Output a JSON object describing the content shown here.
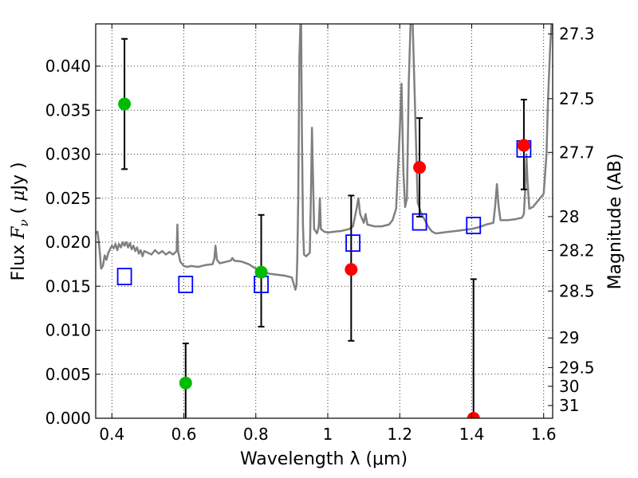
{
  "chart_data": {
    "type": "scatter",
    "xlabel": "Wavelength  λ (μm)",
    "ylabel": "Flux  F_ν  ( μJy )",
    "ylabel_right": "Magnitude (AB)",
    "xlim": [
      0.355,
      1.625
    ],
    "ylim": [
      0.0,
      0.0448
    ],
    "grid": true,
    "x_ticks": [
      {
        "value": 0.4,
        "label": "0.4"
      },
      {
        "value": 0.6,
        "label": "0.6"
      },
      {
        "value": 0.8,
        "label": "0.8"
      },
      {
        "value": 1.0,
        "label": "1"
      },
      {
        "value": 1.2,
        "label": "1.2"
      },
      {
        "value": 1.4,
        "label": "1.4"
      },
      {
        "value": 1.6,
        "label": "1.6"
      }
    ],
    "y_ticks": [
      {
        "value": 0.0,
        "label": "0.000"
      },
      {
        "value": 0.005,
        "label": "0.005"
      },
      {
        "value": 0.01,
        "label": "0.010"
      },
      {
        "value": 0.015,
        "label": "0.015"
      },
      {
        "value": 0.02,
        "label": "0.020"
      },
      {
        "value": 0.025,
        "label": "0.025"
      },
      {
        "value": 0.03,
        "label": "0.030"
      },
      {
        "value": 0.035,
        "label": "0.035"
      },
      {
        "value": 0.04,
        "label": "0.040"
      }
    ],
    "mag_ticks": [
      {
        "value": 27.3,
        "label": "27.3"
      },
      {
        "value": 27.5,
        "label": "27.5"
      },
      {
        "value": 27.7,
        "label": "27.7"
      },
      {
        "value": 28.0,
        "label": "28"
      },
      {
        "value": 28.2,
        "label": "28.2"
      },
      {
        "value": 28.5,
        "label": "28.5"
      },
      {
        "value": 29.0,
        "label": "29"
      },
      {
        "value": 29.5,
        "label": "29.5"
      },
      {
        "value": 30.0,
        "label": "30"
      },
      {
        "value": 31.0,
        "label": "31"
      }
    ],
    "model_spectrum": {
      "color": "#808080",
      "points": [
        [
          0.355,
          0.021
        ],
        [
          0.36,
          0.0212
        ],
        [
          0.365,
          0.0195
        ],
        [
          0.37,
          0.017
        ],
        [
          0.375,
          0.0173
        ],
        [
          0.38,
          0.0185
        ],
        [
          0.385,
          0.018
        ],
        [
          0.39,
          0.0188
        ],
        [
          0.395,
          0.0192
        ],
        [
          0.4,
          0.0196
        ],
        [
          0.405,
          0.0193
        ],
        [
          0.41,
          0.0198
        ],
        [
          0.415,
          0.0191
        ],
        [
          0.42,
          0.0198
        ],
        [
          0.425,
          0.0194
        ],
        [
          0.43,
          0.02
        ],
        [
          0.435,
          0.0196
        ],
        [
          0.44,
          0.02
        ],
        [
          0.445,
          0.0194
        ],
        [
          0.45,
          0.0199
        ],
        [
          0.455,
          0.0192
        ],
        [
          0.46,
          0.0196
        ],
        [
          0.465,
          0.019
        ],
        [
          0.47,
          0.0194
        ],
        [
          0.475,
          0.0187
        ],
        [
          0.48,
          0.0191
        ],
        [
          0.485,
          0.0184
        ],
        [
          0.49,
          0.019
        ],
        [
          0.5,
          0.0188
        ],
        [
          0.51,
          0.0186
        ],
        [
          0.52,
          0.0191
        ],
        [
          0.53,
          0.0187
        ],
        [
          0.54,
          0.019
        ],
        [
          0.55,
          0.0186
        ],
        [
          0.56,
          0.0189
        ],
        [
          0.57,
          0.0186
        ],
        [
          0.58,
          0.019
        ],
        [
          0.582,
          0.022
        ],
        [
          0.584,
          0.019
        ],
        [
          0.59,
          0.0178
        ],
        [
          0.6,
          0.0173
        ],
        [
          0.61,
          0.0172
        ],
        [
          0.62,
          0.0173
        ],
        [
          0.64,
          0.0172
        ],
        [
          0.66,
          0.0174
        ],
        [
          0.68,
          0.0175
        ],
        [
          0.685,
          0.0182
        ],
        [
          0.688,
          0.0196
        ],
        [
          0.692,
          0.018
        ],
        [
          0.7,
          0.0176
        ],
        [
          0.72,
          0.0178
        ],
        [
          0.73,
          0.0179
        ],
        [
          0.735,
          0.0182
        ],
        [
          0.74,
          0.0179
        ],
        [
          0.76,
          0.0178
        ],
        [
          0.78,
          0.0175
        ],
        [
          0.8,
          0.017
        ],
        [
          0.82,
          0.0166
        ],
        [
          0.84,
          0.0164
        ],
        [
          0.86,
          0.0163
        ],
        [
          0.88,
          0.0162
        ],
        [
          0.9,
          0.016
        ],
        [
          0.91,
          0.0146
        ],
        [
          0.913,
          0.0152
        ],
        [
          0.915,
          0.0178
        ],
        [
          0.918,
          0.025
        ],
        [
          0.921,
          0.041
        ],
        [
          0.924,
          0.0448
        ],
        [
          0.926,
          0.0448
        ],
        [
          0.928,
          0.033
        ],
        [
          0.931,
          0.0218
        ],
        [
          0.934,
          0.0186
        ],
        [
          0.94,
          0.0184
        ],
        [
          0.95,
          0.0188
        ],
        [
          0.953,
          0.025
        ],
        [
          0.956,
          0.033
        ],
        [
          0.958,
          0.029
        ],
        [
          0.962,
          0.0215
        ],
        [
          0.97,
          0.021
        ],
        [
          0.975,
          0.0218
        ],
        [
          0.978,
          0.025
        ],
        [
          0.981,
          0.0215
        ],
        [
          0.99,
          0.0212
        ],
        [
          1.0,
          0.0211
        ],
        [
          1.02,
          0.0212
        ],
        [
          1.04,
          0.0213
        ],
        [
          1.06,
          0.0215
        ],
        [
          1.07,
          0.0218
        ],
        [
          1.08,
          0.0238
        ],
        [
          1.085,
          0.025
        ],
        [
          1.09,
          0.0232
        ],
        [
          1.1,
          0.0222
        ],
        [
          1.105,
          0.0232
        ],
        [
          1.11,
          0.022
        ],
        [
          1.13,
          0.0218
        ],
        [
          1.15,
          0.0218
        ],
        [
          1.17,
          0.022
        ],
        [
          1.18,
          0.0225
        ],
        [
          1.19,
          0.0238
        ],
        [
          1.2,
          0.0325
        ],
        [
          1.205,
          0.038
        ],
        [
          1.21,
          0.028
        ],
        [
          1.215,
          0.024
        ],
        [
          1.22,
          0.025
        ],
        [
          1.225,
          0.038
        ],
        [
          1.23,
          0.0448
        ],
        [
          1.236,
          0.0448
        ],
        [
          1.242,
          0.036
        ],
        [
          1.25,
          0.0245
        ],
        [
          1.26,
          0.0232
        ],
        [
          1.27,
          0.0225
        ],
        [
          1.28,
          0.0217
        ],
        [
          1.29,
          0.0212
        ],
        [
          1.3,
          0.021
        ],
        [
          1.32,
          0.0211
        ],
        [
          1.34,
          0.0212
        ],
        [
          1.36,
          0.0213
        ],
        [
          1.38,
          0.0214
        ],
        [
          1.4,
          0.0215
        ],
        [
          1.42,
          0.0217
        ],
        [
          1.44,
          0.022
        ],
        [
          1.46,
          0.0222
        ],
        [
          1.465,
          0.024
        ],
        [
          1.47,
          0.0266
        ],
        [
          1.475,
          0.024
        ],
        [
          1.48,
          0.0225
        ],
        [
          1.5,
          0.0225
        ],
        [
          1.52,
          0.0226
        ],
        [
          1.54,
          0.0228
        ],
        [
          1.545,
          0.0232
        ],
        [
          1.548,
          0.0255
        ],
        [
          1.552,
          0.03
        ],
        [
          1.555,
          0.027
        ],
        [
          1.56,
          0.0238
        ],
        [
          1.57,
          0.024
        ],
        [
          1.58,
          0.0245
        ],
        [
          1.59,
          0.025
        ],
        [
          1.6,
          0.0255
        ],
        [
          1.608,
          0.03
        ],
        [
          1.612,
          0.036
        ],
        [
          1.618,
          0.042
        ],
        [
          1.622,
          0.0448
        ],
        [
          1.625,
          0.0448
        ]
      ]
    },
    "model_photometry": {
      "marker": "open-square",
      "color": "#0000ff",
      "points": [
        {
          "x": 0.435,
          "y": 0.0161
        },
        {
          "x": 0.605,
          "y": 0.0152
        },
        {
          "x": 0.815,
          "y": 0.0152
        },
        {
          "x": 1.07,
          "y": 0.0199
        },
        {
          "x": 1.255,
          "y": 0.0223
        },
        {
          "x": 1.405,
          "y": 0.0219
        },
        {
          "x": 1.545,
          "y": 0.0306
        }
      ]
    },
    "observed_optical": {
      "marker": "filled-circle",
      "color": "#00bb00",
      "points": [
        {
          "x": 0.435,
          "y": 0.0357,
          "err_low": 0.0283,
          "err_high": 0.0431
        },
        {
          "x": 0.605,
          "y": 0.004,
          "err_low": 0.0,
          "err_high": 0.0085
        },
        {
          "x": 0.815,
          "y": 0.0166,
          "err_low": 0.0104,
          "err_high": 0.0231
        }
      ]
    },
    "observed_nir": {
      "marker": "filled-circle",
      "color": "#ff0000",
      "points": [
        {
          "x": 1.065,
          "y": 0.0169,
          "err_low": 0.0088,
          "err_high": 0.0253
        },
        {
          "x": 1.255,
          "y": 0.0285,
          "err_low": 0.0229,
          "err_high": 0.0341
        },
        {
          "x": 1.405,
          "y": 0.0,
          "err_low": 0.0,
          "err_high": 0.0158
        },
        {
          "x": 1.545,
          "y": 0.031,
          "err_low": 0.026,
          "err_high": 0.0362
        }
      ]
    }
  }
}
